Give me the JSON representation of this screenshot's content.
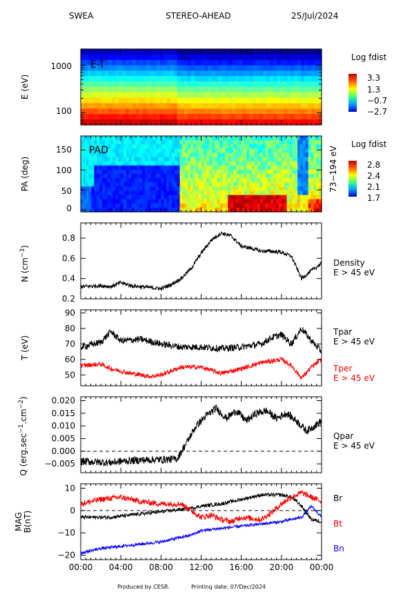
{
  "header": {
    "instrument": "SWEA",
    "spacecraft": "STEREO-AHEAD",
    "date": "25/Jul/2024"
  },
  "footer": {
    "produced_by": "Produced by CESR.",
    "printing_date": "Printing date: 07/Dec/2024"
  },
  "time_axis": {
    "ticks": [
      "00:00",
      "04:00",
      "08:00",
      "12:00",
      "16:00",
      "20:00",
      "00:00"
    ],
    "range_hours": [
      0,
      24
    ]
  },
  "chart_data": [
    {
      "id": "et",
      "type": "heatmap",
      "panel_label": "E-T",
      "ylabel": "E (eV)",
      "yscale": "log",
      "yticks": [
        {
          "value": 1000,
          "label": "1000"
        },
        {
          "value": 100,
          "label": "100"
        }
      ],
      "ylim": [
        55,
        2200
      ],
      "colorbar": {
        "title": "Log fdist",
        "ticks": [
          "3.3",
          "1.3",
          "−0.7",
          "−2.7"
        ],
        "range": [
          -2.7,
          3.3
        ]
      },
      "description_colors": "red at low energy to blue at high energy, slightly brighter after ~09:30"
    },
    {
      "id": "pad",
      "type": "heatmap",
      "panel_label": "PAD",
      "ylabel": "PA (deg)",
      "yticks": [
        {
          "value": 150,
          "label": "150"
        },
        {
          "value": 100,
          "label": "100"
        },
        {
          "value": 50,
          "label": "50"
        },
        {
          "value": 0,
          "label": "0"
        }
      ],
      "ylim": [
        -5,
        185
      ],
      "right_label": "73−194 eV",
      "colorbar": {
        "title": "Log fdist",
        "ticks": [
          "2.8",
          "2.4",
          "2.1",
          "1.7"
        ],
        "range": [
          1.7,
          2.8
        ]
      }
    },
    {
      "id": "density",
      "type": "line",
      "ylabel_main": "N (cm",
      "ylabel_sup": "−3",
      "ylabel_end": ")",
      "ylim": [
        0.2,
        0.95
      ],
      "yticks": [
        {
          "value": 0.8,
          "label": "0.8"
        },
        {
          "value": 0.6,
          "label": "0.6"
        },
        {
          "value": 0.4,
          "label": "0.4"
        },
        {
          "value": 0.2,
          "label": "0.2"
        }
      ],
      "legend": [
        {
          "line1": "Density",
          "line2": "E > 45 eV",
          "color": "#000000"
        }
      ],
      "series": [
        {
          "color": "#000000",
          "anchors": [
            [
              0,
              0.32
            ],
            [
              2,
              0.33
            ],
            [
              3,
              0.32
            ],
            [
              4,
              0.36
            ],
            [
              5,
              0.33
            ],
            [
              6,
              0.32
            ],
            [
              8,
              0.3
            ],
            [
              9,
              0.34
            ],
            [
              10,
              0.4
            ],
            [
              11,
              0.5
            ],
            [
              12,
              0.65
            ],
            [
              13,
              0.78
            ],
            [
              14,
              0.85
            ],
            [
              15,
              0.82
            ],
            [
              16,
              0.72
            ],
            [
              17,
              0.7
            ],
            [
              18,
              0.67
            ],
            [
              19,
              0.67
            ],
            [
              20,
              0.66
            ],
            [
              21,
              0.62
            ],
            [
              22,
              0.4
            ],
            [
              23,
              0.48
            ],
            [
              24,
              0.55
            ]
          ],
          "noise": 0.02
        }
      ]
    },
    {
      "id": "temperature",
      "type": "line",
      "ylabel_main": "T (eV)",
      "ylim": [
        43,
        92
      ],
      "yticks": [
        {
          "value": 90,
          "label": "90"
        },
        {
          "value": 80,
          "label": "80"
        },
        {
          "value": 70,
          "label": "70"
        },
        {
          "value": 60,
          "label": "60"
        },
        {
          "value": 50,
          "label": "50"
        }
      ],
      "legend": [
        {
          "line1": "Tpar",
          "line2": "E > 45 eV",
          "color": "#000000"
        },
        {
          "line1": "Tper",
          "line2": "E > 45 eV",
          "color": "#ff0000"
        }
      ],
      "series": [
        {
          "name": "Tpar",
          "color": "#000000",
          "anchors": [
            [
              0,
              68
            ],
            [
              2,
              71
            ],
            [
              3,
              78
            ],
            [
              4,
              72
            ],
            [
              6,
              73
            ],
            [
              8,
              70
            ],
            [
              10,
              68
            ],
            [
              12,
              68
            ],
            [
              14,
              67
            ],
            [
              16,
              68
            ],
            [
              18,
              70
            ],
            [
              19,
              74
            ],
            [
              20,
              76
            ],
            [
              21,
              70
            ],
            [
              22,
              80
            ],
            [
              23,
              72
            ],
            [
              24,
              65
            ]
          ],
          "noise": 2.2
        },
        {
          "name": "Tper",
          "color": "#ff0000",
          "anchors": [
            [
              0,
              56
            ],
            [
              2,
              57
            ],
            [
              3,
              54
            ],
            [
              5,
              51
            ],
            [
              7,
              49
            ],
            [
              8,
              50
            ],
            [
              10,
              55
            ],
            [
              12,
              55
            ],
            [
              14,
              51
            ],
            [
              16,
              54
            ],
            [
              18,
              58
            ],
            [
              20,
              60
            ],
            [
              21,
              56
            ],
            [
              22,
              48
            ],
            [
              23,
              55
            ],
            [
              24,
              60
            ]
          ],
          "noise": 1.5
        }
      ]
    },
    {
      "id": "qpar",
      "type": "line",
      "ylabel_main": "Q (erg.sec",
      "ylabel_sup1": "−1",
      "ylabel_mid": ".cm",
      "ylabel_sup2": "−2",
      "ylabel_end": ")",
      "ylim": [
        -0.0085,
        0.0215
      ],
      "yticks": [
        {
          "value": 0.02,
          "label": "0.020"
        },
        {
          "value": 0.015,
          "label": "0.015"
        },
        {
          "value": 0.01,
          "label": "0.010"
        },
        {
          "value": 0.005,
          "label": "0.005"
        },
        {
          "value": 0.0,
          "label": "0.000"
        },
        {
          "value": -0.005,
          "label": "−0.005"
        }
      ],
      "zero_line": true,
      "legend": [
        {
          "line1": "Qpar",
          "line2": "E > 45 eV",
          "color": "#000000"
        }
      ],
      "series": [
        {
          "color": "#000000",
          "anchors": [
            [
              0,
              -0.004
            ],
            [
              3,
              -0.0045
            ],
            [
              4,
              -0.004
            ],
            [
              6,
              -0.0035
            ],
            [
              9,
              -0.0032
            ],
            [
              9.6,
              -0.003
            ],
            [
              10.5,
              0.003
            ],
            [
              11.5,
              0.01
            ],
            [
              12.5,
              0.014
            ],
            [
              13.5,
              0.017
            ],
            [
              14.5,
              0.013
            ],
            [
              15.5,
              0.016
            ],
            [
              16.5,
              0.012
            ],
            [
              17.5,
              0.015
            ],
            [
              18.5,
              0.016
            ],
            [
              19.5,
              0.013
            ],
            [
              20.5,
              0.015
            ],
            [
              21.5,
              0.012
            ],
            [
              22.5,
              0.008
            ],
            [
              23.3,
              0.01
            ],
            [
              24,
              0.012
            ]
          ],
          "noise": 0.0015
        }
      ]
    },
    {
      "id": "mag",
      "type": "line",
      "ylabel_main": "MAG",
      "ylabel_line2": "B(nT)",
      "ylim": [
        -22,
        12
      ],
      "yticks": [
        {
          "value": 10,
          "label": "10"
        },
        {
          "value": 0,
          "label": "0"
        },
        {
          "value": -10,
          "label": "−10"
        },
        {
          "value": -20,
          "label": "−20"
        }
      ],
      "zero_line": true,
      "legend": [
        {
          "line1": "Br",
          "color": "#000000"
        },
        {
          "line1": "Bt",
          "color": "#ff0000"
        },
        {
          "line1": "Bn",
          "color": "#0000ff"
        }
      ],
      "series": [
        {
          "name": "Br",
          "color": "#000000",
          "anchors": [
            [
              0,
              -3
            ],
            [
              3,
              -3
            ],
            [
              5,
              -2
            ],
            [
              7,
              -1
            ],
            [
              9,
              0
            ],
            [
              11,
              1
            ],
            [
              12,
              2
            ],
            [
              14,
              3
            ],
            [
              16,
              5
            ],
            [
              18,
              7
            ],
            [
              20,
              7
            ],
            [
              21,
              6
            ],
            [
              22,
              2
            ],
            [
              23,
              -4
            ],
            [
              24,
              -5
            ]
          ],
          "noise": 0.8
        },
        {
          "name": "Bt",
          "color": "#ff0000",
          "anchors": [
            [
              0,
              3
            ],
            [
              2,
              5
            ],
            [
              4,
              6
            ],
            [
              6,
              4
            ],
            [
              8,
              3
            ],
            [
              10,
              3
            ],
            [
              11,
              0
            ],
            [
              12,
              -3
            ],
            [
              13,
              -2
            ],
            [
              14,
              -4
            ],
            [
              15,
              -5
            ],
            [
              16,
              -3
            ],
            [
              18,
              -4
            ],
            [
              19,
              -1
            ],
            [
              20,
              3
            ],
            [
              21,
              6
            ],
            [
              22,
              8
            ],
            [
              23,
              6
            ],
            [
              24,
              4
            ]
          ],
          "noise": 1.3
        },
        {
          "name": "Bn",
          "color": "#0000ff",
          "anchors": [
            [
              0,
              -19
            ],
            [
              2,
              -17
            ],
            [
              4,
              -16
            ],
            [
              6,
              -15
            ],
            [
              8,
              -14
            ],
            [
              10,
              -12
            ],
            [
              11,
              -11
            ],
            [
              12,
              -9
            ],
            [
              14,
              -8
            ],
            [
              16,
              -7
            ],
            [
              18,
              -6
            ],
            [
              20,
              -5
            ],
            [
              21,
              -4
            ],
            [
              22,
              -3
            ],
            [
              23,
              2
            ],
            [
              24,
              -3
            ]
          ],
          "noise": 0.7
        }
      ]
    }
  ]
}
